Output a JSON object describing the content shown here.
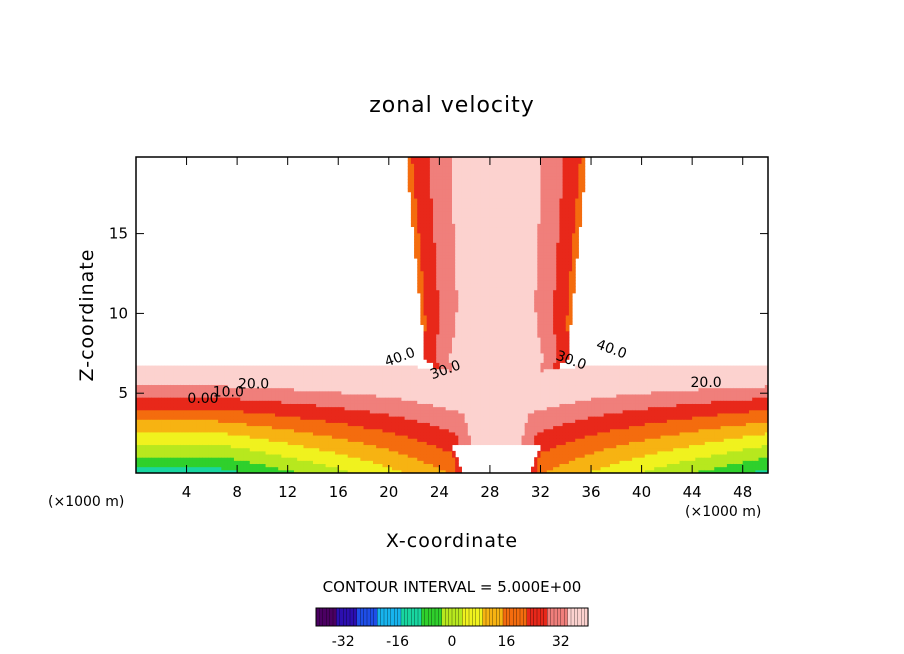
{
  "chart_data": {
    "type": "heatmap",
    "title": "zonal velocity",
    "xlabel": "X-coordinate",
    "ylabel": "Z-coordinate",
    "x_unit_label_left": "(×1000 m)",
    "x_unit_label_right": "(×1000 m)",
    "xlim": [
      0,
      50
    ],
    "ylim": [
      0,
      19.8
    ],
    "x_ticks": [
      4,
      8,
      12,
      16,
      20,
      24,
      28,
      32,
      36,
      40,
      44,
      48
    ],
    "y_ticks": [
      5,
      10,
      15
    ],
    "grid": false,
    "contour_interval_label": "CONTOUR INTERVAL = 5.000E+00",
    "contour_labels": [
      {
        "text": "40.0",
        "x": 21.0,
        "z": 7.0
      },
      {
        "text": "30.0",
        "x": 24.6,
        "z": 6.2
      },
      {
        "text": "20.0",
        "x": 9.3,
        "z": 5.3
      },
      {
        "text": "10.0",
        "x": 7.3,
        "z": 4.8
      },
      {
        "text": "0.00",
        "x": 5.3,
        "z": 4.4
      },
      {
        "text": "40.0",
        "x": 37.5,
        "z": 7.5
      },
      {
        "text": "30.0",
        "x": 34.3,
        "z": 6.8
      },
      {
        "text": "20.0",
        "x": 45.1,
        "z": 5.4
      }
    ],
    "colorbar": {
      "ticks": [
        "-32",
        "-16",
        "0",
        "16",
        "32"
      ],
      "tick_values": [
        -32,
        -16,
        0,
        16,
        32
      ],
      "range": [
        -40,
        40
      ],
      "colors": [
        "#4b0062",
        "#2c0fb0",
        "#1e4ee8",
        "#17b4ee",
        "#18d6a0",
        "#2fd02c",
        "#b7e81e",
        "#f0f21e",
        "#f7b312",
        "#f46c0e",
        "#e8281a",
        "#f07f7b",
        "#fcd2cf"
      ]
    },
    "colors": {
      "background": "#ffffff",
      "contour_line": "#000000"
    }
  }
}
